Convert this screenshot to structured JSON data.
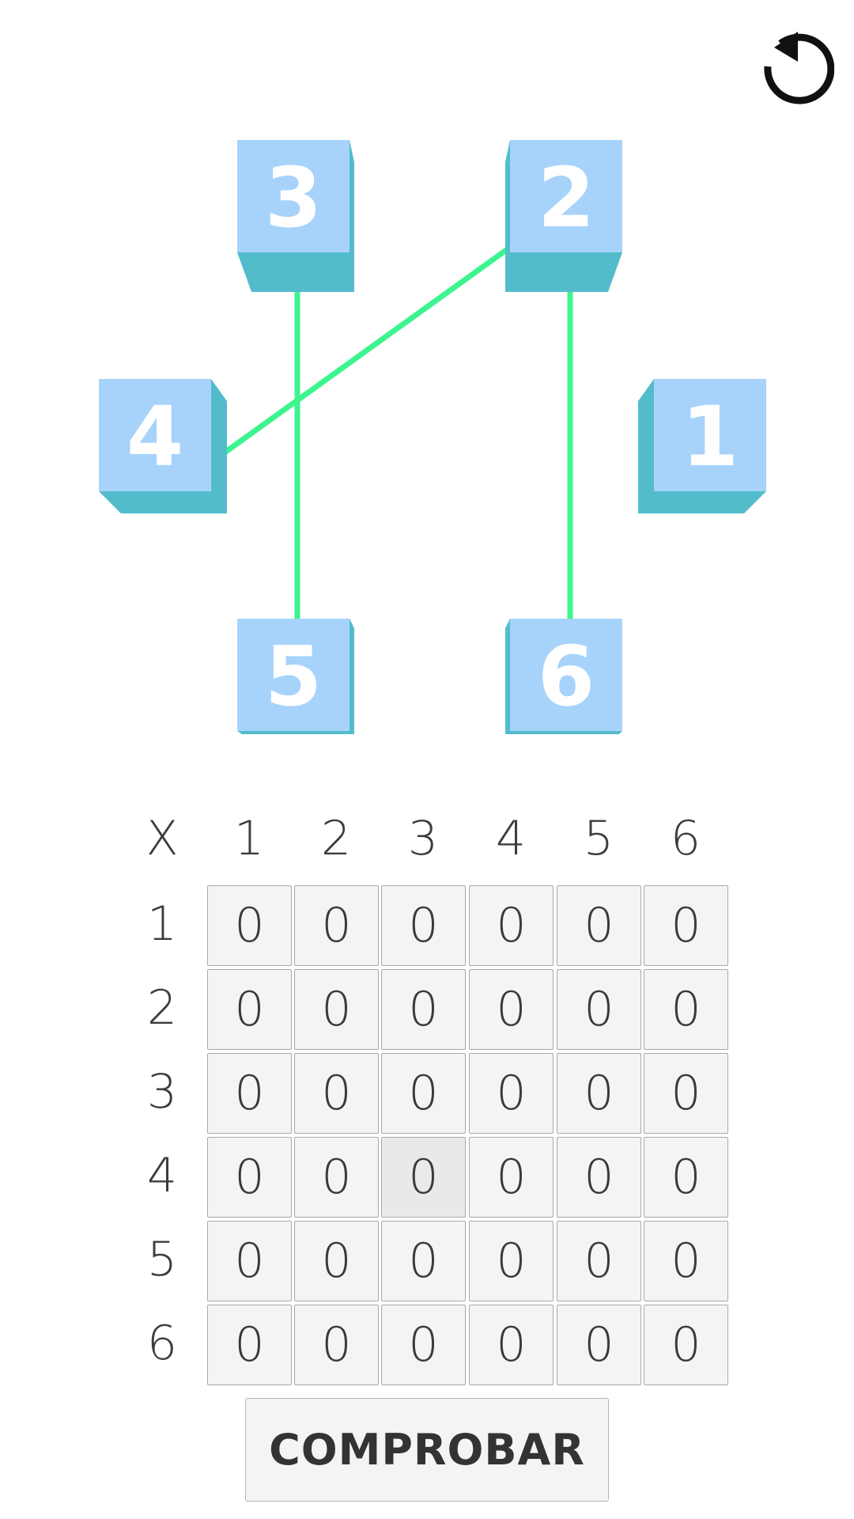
{
  "controls": {
    "reset_icon": "reset-icon"
  },
  "nodes": [
    {
      "id": 1,
      "label": "3"
    },
    {
      "id": 2,
      "label": "2"
    },
    {
      "id": 3,
      "label": "4"
    },
    {
      "id": 4,
      "label": "1"
    },
    {
      "id": 5,
      "label": "5"
    },
    {
      "id": 6,
      "label": "6"
    }
  ],
  "edges": [
    {
      "from": "3",
      "to": "5"
    },
    {
      "from": "2",
      "to": "4"
    },
    {
      "from": "2",
      "to": "6"
    }
  ],
  "colors": {
    "node_face": "#a7d3fb",
    "node_side": "#53bccb",
    "edge": "#3cf58f",
    "icon": "#111111"
  },
  "matrix": {
    "corner": "X",
    "col_headers": [
      "1",
      "2",
      "3",
      "4",
      "5",
      "6"
    ],
    "row_headers": [
      "1",
      "2",
      "3",
      "4",
      "5",
      "6"
    ],
    "cells": [
      [
        "0",
        "0",
        "0",
        "0",
        "0",
        "0"
      ],
      [
        "0",
        "0",
        "0",
        "0",
        "0",
        "0"
      ],
      [
        "0",
        "0",
        "0",
        "0",
        "0",
        "0"
      ],
      [
        "0",
        "0",
        "0",
        "0",
        "0",
        "0"
      ],
      [
        "0",
        "0",
        "0",
        "0",
        "0",
        "0"
      ],
      [
        "0",
        "0",
        "0",
        "0",
        "0",
        "0"
      ]
    ]
  },
  "check_button": {
    "label": "COMPROBAR"
  }
}
